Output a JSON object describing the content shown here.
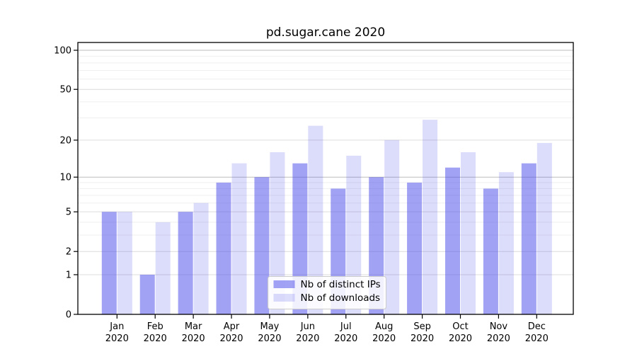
{
  "chart_data": {
    "type": "bar",
    "title": "pd.sugar.cane 2020",
    "categories": [
      {
        "line1": "Jan",
        "line2": "2020"
      },
      {
        "line1": "Feb",
        "line2": "2020"
      },
      {
        "line1": "Mar",
        "line2": "2020"
      },
      {
        "line1": "Apr",
        "line2": "2020"
      },
      {
        "line1": "May",
        "line2": "2020"
      },
      {
        "line1": "Jun",
        "line2": "2020"
      },
      {
        "line1": "Jul",
        "line2": "2020"
      },
      {
        "line1": "Aug",
        "line2": "2020"
      },
      {
        "line1": "Sep",
        "line2": "2020"
      },
      {
        "line1": "Oct",
        "line2": "2020"
      },
      {
        "line1": "Nov",
        "line2": "2020"
      },
      {
        "line1": "Dec",
        "line2": "2020"
      }
    ],
    "series": [
      {
        "name": "Nb of distinct IPs",
        "values": [
          5,
          1,
          5,
          9,
          10,
          13,
          8,
          10,
          9,
          12,
          8,
          13
        ],
        "color": "#4646ea",
        "fill_opacity": 0.5,
        "perceived_color": "#a2a2f4"
      },
      {
        "name": "Nb of downloads",
        "values": [
          5,
          4,
          6,
          13,
          16,
          26,
          15,
          20,
          29,
          16,
          11,
          19
        ],
        "color": "#4646ea",
        "fill_opacity": 0.19,
        "perceived_color": "#dbdbfa"
      }
    ],
    "yscale": "log10(value+1)",
    "yticks": [
      0,
      1,
      2,
      5,
      10,
      20,
      50,
      100
    ],
    "minor_yticks": [
      3,
      4,
      6,
      7,
      8,
      9,
      30,
      40,
      60,
      70,
      80,
      90
    ],
    "ylim": [
      0,
      115
    ],
    "xlabel": "",
    "ylabel": "",
    "grid": true,
    "legend_position": "lower center"
  },
  "colors": {
    "axis": "#000000",
    "tick_text": "#000000",
    "grid_major_power10": "#bdbdbd",
    "grid_labeled": "#dcdcdc",
    "grid_minor": "#efefef",
    "legend_border": "#cccccc",
    "legend_bg": "#ffffff"
  }
}
